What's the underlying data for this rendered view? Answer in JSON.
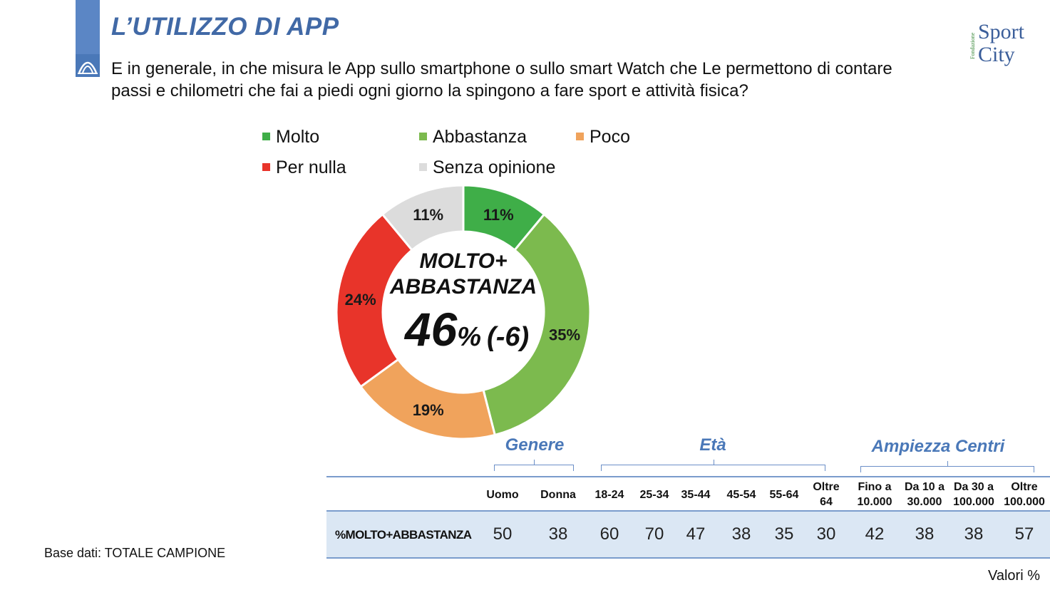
{
  "header": {
    "title": "L’UTILIZZO DI APP",
    "question": "E in generale, in che misura le App sullo smartphone o sullo smart Watch che Le permettono di contare passi e chilometri che fai a piedi ogni giorno la spingono a fare sport e attività fisica?",
    "brand_top": "Fondazione",
    "brand_line1": "Sport",
    "brand_line2": "City",
    "accent_color": "#5b86c5"
  },
  "chart_data": [
    {
      "type": "pie",
      "subtype": "donut",
      "categories": [
        "Molto",
        "Abbastanza",
        "Poco",
        "Per nulla",
        "Senza opinione"
      ],
      "values": [
        11,
        35,
        19,
        24,
        11
      ],
      "value_labels": [
        "11%",
        "35%",
        "19%",
        "24%",
        "11%"
      ],
      "colors": [
        "#3fae48",
        "#7cba4e",
        "#f0a35c",
        "#e8342a",
        "#dcdcdc"
      ],
      "legend_position": "top",
      "center_label_line1": "MOLTO+",
      "center_label_line2": "ABBASTANZA",
      "center_value": "46",
      "center_unit": "%",
      "center_change": "(-6)"
    },
    {
      "type": "table",
      "groups": [
        {
          "name": "Genere",
          "columns": [
            "Uomo",
            "Donna"
          ]
        },
        {
          "name": "Età",
          "columns": [
            "18-24",
            "25-34",
            "35-44",
            "45-54",
            "55-64",
            "Oltre 64"
          ]
        },
        {
          "name": "Ampiezza Centri",
          "columns": [
            "Fino a 10.000",
            "Da 10 a 30.000",
            "Da 30 a 100.000",
            "Oltre 100.000"
          ]
        }
      ],
      "columns": [
        "Uomo",
        "Donna",
        "18-24",
        "25-34",
        "35-44",
        "45-54",
        "55-64",
        "Oltre 64",
        "Fino a 10.000",
        "Da 10 a 30.000",
        "Da 30 a 100.000",
        "Oltre 100.000"
      ],
      "row_label": "%MOLTO+ABBASTANZA",
      "values": [
        50,
        38,
        60,
        70,
        47,
        38,
        35,
        30,
        42,
        38,
        38,
        57
      ]
    }
  ],
  "table_view": {
    "groups": [
      "Genere",
      "Età",
      "Ampiezza Centri"
    ],
    "headers": [
      [
        "Uomo"
      ],
      [
        "Donna"
      ],
      [
        "18-24"
      ],
      [
        "25-34"
      ],
      [
        "35-44"
      ],
      [
        "45-54"
      ],
      [
        "55-64"
      ],
      [
        "Oltre",
        "64"
      ],
      [
        "Fino a",
        "10.000"
      ],
      [
        "Da 10 a",
        "30.000"
      ],
      [
        "Da 30 a",
        "100.000"
      ],
      [
        "Oltre",
        "100.000"
      ]
    ],
    "row_label": "%MOLTO+ABBASTANZA",
    "cells": [
      "50",
      "38",
      "60",
      "70",
      "47",
      "38",
      "35",
      "30",
      "42",
      "38",
      "38",
      "57"
    ]
  },
  "footer": {
    "base_note": "Base dati: TOTALE CAMPIONE",
    "units_note": "Valori %"
  }
}
